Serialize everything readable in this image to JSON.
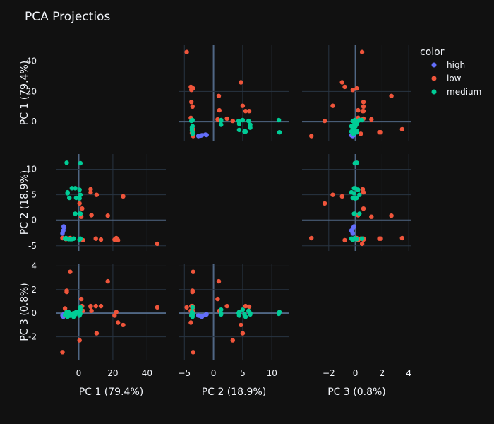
{
  "chart_data": {
    "type": "scatter",
    "subtype": "scatter-matrix",
    "title": "PCA Projectios",
    "dimensions": [
      "PC 1 (79.4%)",
      "PC 2 (18.9%)",
      "PC 3 (0.8%)"
    ],
    "ranges": [
      [
        -13,
        51
      ],
      [
        -6,
        13
      ],
      [
        -4,
        4.2
      ]
    ],
    "ticks": [
      [
        0,
        20,
        40
      ],
      [
        -5,
        0,
        5,
        10
      ],
      [
        -2,
        0,
        2,
        4
      ]
    ],
    "colors": {
      "high": "#636efa",
      "low": "#ef553b",
      "medium": "#00cc96",
      "background": "#111111",
      "grid": "#283442"
    },
    "legend": {
      "title": "color",
      "position": "top-right"
    },
    "series": [
      {
        "name": "high",
        "points": [
          [
            -8.5,
            -1.4,
            -0.15
          ],
          [
            -9.0,
            -2.0,
            -0.3
          ],
          [
            -9.5,
            -2.6,
            -0.2
          ],
          [
            -8.8,
            -1.2,
            -0.1
          ],
          [
            -9.2,
            -2.2,
            -0.25
          ]
        ]
      },
      {
        "name": "low",
        "points": [
          [
            46,
            -4.6,
            0.5
          ],
          [
            22,
            -3.5,
            0.1
          ],
          [
            21,
            -3.8,
            -0.2
          ],
          [
            -9.5,
            -3.5,
            -3.3
          ],
          [
            26,
            4.7,
            -1.0
          ],
          [
            10.5,
            5.0,
            -1.7
          ],
          [
            0.5,
            3.3,
            -2.3
          ],
          [
            -5,
            -3.5,
            3.5
          ],
          [
            17,
            0.9,
            2.7
          ],
          [
            7,
            5.5,
            0.6
          ],
          [
            7,
            6.1,
            0.55
          ],
          [
            1.5,
            0.7,
            1.2
          ],
          [
            2,
            2.3,
            0.6
          ],
          [
            13,
            -3.8,
            0.6
          ],
          [
            2.5,
            -3.9,
            0.2
          ],
          [
            -7,
            -3.6,
            1.9
          ],
          [
            -7,
            -3.6,
            1.8
          ],
          [
            -8,
            -3.6,
            0.4
          ],
          [
            7.5,
            1.0,
            0.2
          ],
          [
            23,
            -3.9,
            -0.8
          ],
          [
            10,
            -3.6,
            0.6
          ],
          [
            -7.5,
            -3.7,
            -0.2
          ]
        ]
      },
      {
        "name": "medium",
        "points": [
          [
            -7,
            11.3,
            0.1
          ],
          [
            1,
            11.2,
            -0.05
          ],
          [
            -6.5,
            5.3,
            -0.1
          ],
          [
            -6.5,
            5.5,
            -0.3
          ],
          [
            -4,
            6.3,
            -0.1
          ],
          [
            -2,
            6.3,
            0.0
          ],
          [
            0.5,
            6.0,
            0.2
          ],
          [
            -5.5,
            4.4,
            -0.2
          ],
          [
            -1.5,
            4.4,
            0.1
          ],
          [
            1,
            5.0,
            0.3
          ],
          [
            0.5,
            4.3,
            0.0
          ],
          [
            -2,
            1.3,
            -0.1
          ],
          [
            0.5,
            1.3,
            -0.05
          ],
          [
            1,
            1.3,
            0.3
          ],
          [
            -3,
            -3.6,
            -0.3
          ],
          [
            0.5,
            -3.8,
            -0.2
          ],
          [
            -8,
            -3.6,
            -0.15
          ],
          [
            -7,
            -3.6,
            -0.05
          ],
          [
            -6,
            -3.7,
            0.1
          ],
          [
            -5,
            -3.7,
            -0.2
          ],
          [
            -4,
            -3.7,
            -0.1
          ],
          [
            -3,
            -3.6,
            0.0
          ],
          [
            -7.5,
            -3.5,
            -0.05
          ],
          [
            1,
            -3.6,
            0.5
          ]
        ]
      }
    ]
  }
}
